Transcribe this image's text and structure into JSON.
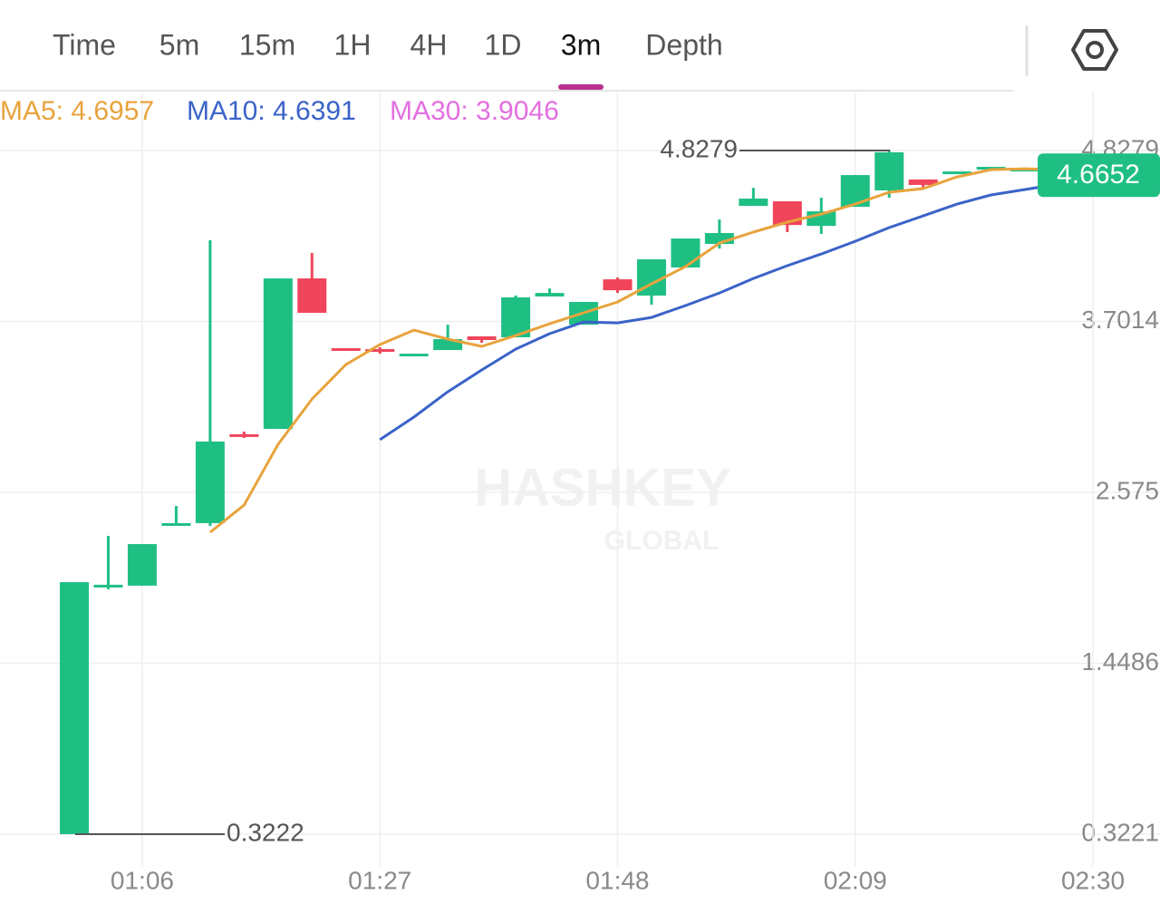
{
  "tabs": [
    "Time",
    "5m",
    "15m",
    "1H",
    "4H",
    "1D",
    "3m",
    "Depth"
  ],
  "active_tab": 6,
  "watermark": {
    "brand": "HASHKEY",
    "sub": "GLOBAL"
  },
  "chart_data": {
    "type": "candlestick",
    "categories": [
      null,
      null,
      "01:06",
      null,
      null,
      null,
      null,
      null,
      null,
      "01:27",
      null,
      null,
      null,
      null,
      null,
      null,
      "01:48",
      null,
      null,
      null,
      null,
      null,
      null,
      "02:09",
      null,
      null,
      null,
      null,
      null,
      null,
      "02:30"
    ],
    "open": [
      0.3222,
      1.954,
      1.96,
      2.36,
      2.372,
      2.958,
      2.993,
      3.985,
      3.525,
      3.519,
      3.477,
      3.513,
      3.603,
      3.597,
      3.866,
      3.68,
      3.979,
      3.872,
      4.057,
      4.212,
      4.463,
      4.493,
      4.331,
      4.457,
      4.565,
      4.637,
      4.679,
      4.708,
      4.702,
      4.708,
      null
    ],
    "high": [
      1.983,
      2.288,
      2.234,
      2.485,
      4.236,
      2.975,
      3.985,
      4.153,
      3.525,
      3.531,
      3.489,
      3.68,
      3.603,
      3.872,
      3.919,
      3.83,
      3.991,
      4.111,
      4.248,
      4.373,
      4.582,
      4.493,
      4.517,
      4.666,
      4.8279,
      4.637,
      4.69,
      4.72,
      4.708,
      4.708,
      null
    ],
    "low": [
      0.3222,
      1.936,
      1.96,
      2.36,
      2.354,
      2.934,
      2.993,
      3.758,
      3.513,
      3.489,
      3.477,
      3.513,
      3.561,
      3.597,
      3.866,
      3.68,
      3.889,
      3.812,
      4.057,
      4.182,
      4.463,
      4.29,
      4.278,
      4.457,
      4.517,
      4.582,
      4.679,
      4.708,
      4.702,
      4.6652,
      null
    ],
    "close": [
      1.983,
      1.966,
      2.234,
      2.372,
      2.91,
      2.946,
      3.985,
      3.758,
      3.513,
      3.501,
      3.489,
      3.585,
      3.579,
      3.86,
      3.889,
      3.83,
      3.907,
      4.111,
      4.248,
      4.284,
      4.511,
      4.337,
      4.427,
      4.666,
      4.816,
      4.601,
      4.69,
      4.72,
      4.708,
      4.6652,
      null
    ],
    "up_color": "#1fbf84",
    "down_color": "#f0455a",
    "series": [
      {
        "label": "MA5: 4.6957",
        "color": "#e8a33d",
        "values": [
          null,
          null,
          null,
          null,
          2.312,
          2.491,
          2.891,
          3.19,
          3.417,
          3.549,
          3.644,
          3.585,
          3.537,
          3.608,
          3.686,
          3.758,
          3.83,
          3.949,
          4.063,
          4.218,
          4.29,
          4.356,
          4.409,
          4.475,
          4.553,
          4.577,
          4.654,
          4.702,
          4.708,
          4.702,
          null
        ]
      },
      {
        "label": "MA10: 4.6391",
        "color": "#3a63c8",
        "values": [
          null,
          null,
          null,
          null,
          null,
          null,
          null,
          null,
          null,
          2.922,
          3.071,
          3.238,
          3.382,
          3.519,
          3.621,
          3.698,
          3.692,
          3.728,
          3.806,
          3.889,
          3.985,
          4.069,
          4.146,
          4.23,
          4.32,
          4.397,
          4.475,
          4.535,
          4.571,
          4.607,
          null
        ]
      },
      {
        "label": "MA30: 3.9046",
        "color": "#e36fe0"
      }
    ],
    "ylim": [
      0.3221,
      4.8279
    ],
    "yticks": [
      0.3221,
      1.4486,
      2.575,
      3.7014,
      4.8279
    ],
    "grid": true,
    "high_label": 4.8279,
    "low_label": 0.3222,
    "last_price": 4.6652
  }
}
